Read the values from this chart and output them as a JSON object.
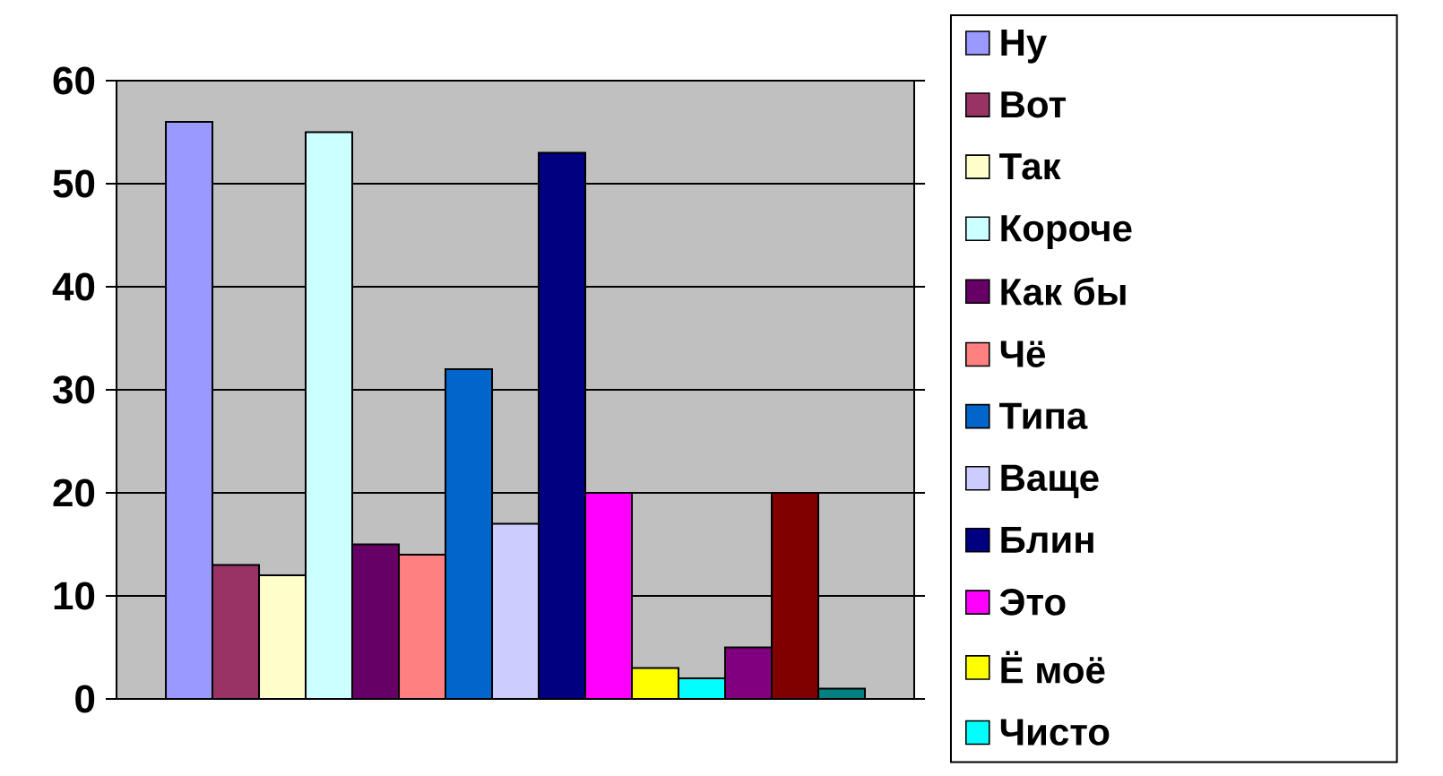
{
  "chart_data": {
    "type": "bar",
    "categories": [
      null
    ],
    "series": [
      {
        "name": "Ну",
        "color": "#9999ff",
        "values": [
          56
        ]
      },
      {
        "name": "Вот",
        "color": "#993366",
        "values": [
          13
        ]
      },
      {
        "name": "Так",
        "color": "#ffffcc",
        "values": [
          12
        ]
      },
      {
        "name": "Короче",
        "color": "#ccffff",
        "values": [
          55
        ]
      },
      {
        "name": "Как бы",
        "color": "#660066",
        "values": [
          15
        ]
      },
      {
        "name": "Чё",
        "color": "#ff8080",
        "values": [
          14
        ]
      },
      {
        "name": "Типа",
        "color": "#0066cc",
        "values": [
          32
        ]
      },
      {
        "name": "Ваще",
        "color": "#ccccff",
        "values": [
          17
        ]
      },
      {
        "name": "Блин",
        "color": "#000080",
        "values": [
          53
        ]
      },
      {
        "name": "Это",
        "color": "#ff00ff",
        "values": [
          20
        ]
      },
      {
        "name": "Ё моё",
        "color": "#ffff00",
        "values": [
          3
        ]
      },
      {
        "name": "Чисто",
        "color": "#00ffff",
        "values": [
          2
        ]
      },
      {
        "color": "#800080",
        "values": [
          5
        ]
      },
      {
        "color": "#800000",
        "values": [
          20
        ]
      },
      {
        "color": "#008080",
        "values": [
          1
        ]
      }
    ],
    "ylim": [
      0,
      60
    ],
    "yticks": [
      0,
      10,
      20,
      30,
      40,
      50,
      60
    ],
    "grid": "y",
    "legend": "right"
  }
}
